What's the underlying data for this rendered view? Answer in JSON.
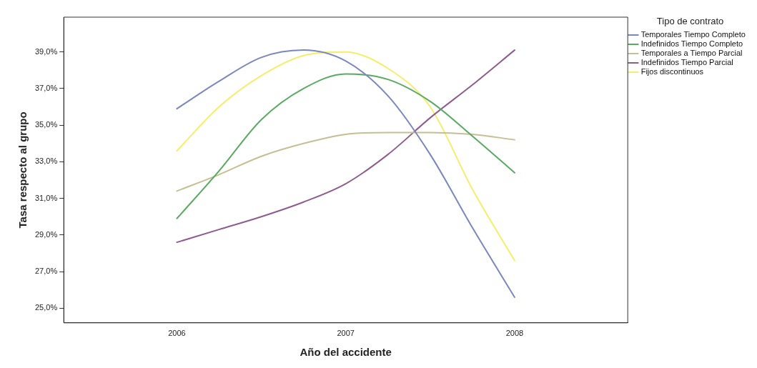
{
  "chart_data": {
    "type": "line",
    "xlabel": "Año del accidente",
    "ylabel": "Tasa respecto al grupo",
    "legend_title": "Tipo de contrato",
    "legend": "top right",
    "grid": false,
    "marker": "none",
    "line_style": "solid",
    "x": [
      2006,
      2006.25,
      2006.5,
      2006.75,
      2007,
      2007.25,
      2007.5,
      2007.75,
      2008
    ],
    "xlim": [
      2005.33,
      2008.67
    ],
    "xticks": [
      2006,
      2007,
      2008
    ],
    "ylim": [
      24.2,
      40.9
    ],
    "yticks": [
      {
        "value": 25,
        "label": "25,0%"
      },
      {
        "value": 27,
        "label": "27,0%"
      },
      {
        "value": 29,
        "label": "29,0%"
      },
      {
        "value": 31,
        "label": "31,0%"
      },
      {
        "value": 33,
        "label": "33,0%"
      },
      {
        "value": 35,
        "label": "35,0%"
      },
      {
        "value": 37,
        "label": "37,0%"
      },
      {
        "value": 39,
        "label": "39,0%"
      }
    ],
    "series": [
      {
        "name": "Temporales Tiempo Completo",
        "color": "#7b88bd",
        "values": [
          35.9,
          37.4,
          38.7,
          39.1,
          38.5,
          36.6,
          33.4,
          29.4,
          25.6
        ]
      },
      {
        "name": "Indefinidos Tiempo Completo",
        "color": "#5aaa63",
        "values": [
          29.9,
          32.5,
          35.3,
          37.0,
          37.8,
          37.5,
          36.3,
          34.4,
          32.4
        ]
      },
      {
        "name": "Temporales a Tiempo Parcial",
        "color": "#c6bf94",
        "values": [
          31.4,
          32.3,
          33.3,
          34.0,
          34.5,
          34.6,
          34.6,
          34.5,
          34.2
        ]
      },
      {
        "name": "Indefinidos Tiempo Parcial",
        "color": "#8f5c8e",
        "values": [
          28.6,
          29.3,
          30.0,
          30.8,
          31.8,
          33.4,
          35.4,
          37.2,
          39.1
        ]
      },
      {
        "name": "Fijos discontinuos",
        "color": "#f5ee6b",
        "values": [
          33.6,
          36.0,
          37.7,
          38.8,
          39.0,
          38.1,
          36.0,
          31.5,
          27.6
        ]
      }
    ]
  }
}
